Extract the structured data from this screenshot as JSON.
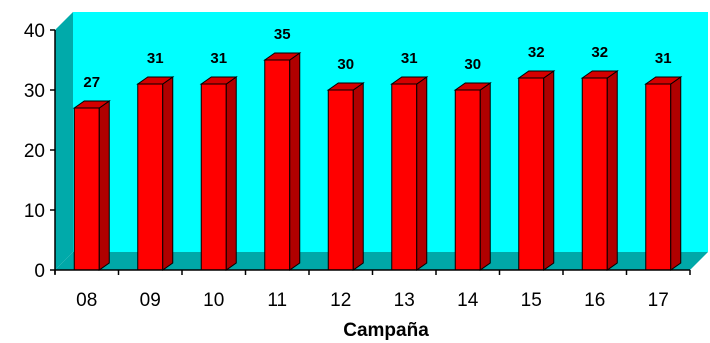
{
  "chart_data": {
    "type": "bar",
    "style": "3d-column",
    "categories": [
      "08",
      "09",
      "10",
      "11",
      "12",
      "13",
      "14",
      "15",
      "16",
      "17"
    ],
    "series": [
      {
        "values": [
          27,
          31,
          31,
          35,
          30,
          31,
          30,
          32,
          32,
          31
        ]
      }
    ],
    "data_labels": [
      "27",
      "31",
      "31",
      "35",
      "30",
      "31",
      "30",
      "32",
      "32",
      "31"
    ],
    "title": "",
    "xlabel": "Campaña",
    "ylabel": "",
    "ylim": [
      0,
      40
    ],
    "y_ticks": [
      "0",
      "10",
      "20",
      "30",
      "40"
    ],
    "grid": false,
    "legend": "none",
    "colors": {
      "bar_front": "#ff0000",
      "bar_side": "#b00000",
      "bar_top": "#d40000",
      "back_wall": "#00ffff",
      "side_wall": "#00aaaa",
      "floor": "#00a8a8",
      "outline": "#000000"
    }
  }
}
